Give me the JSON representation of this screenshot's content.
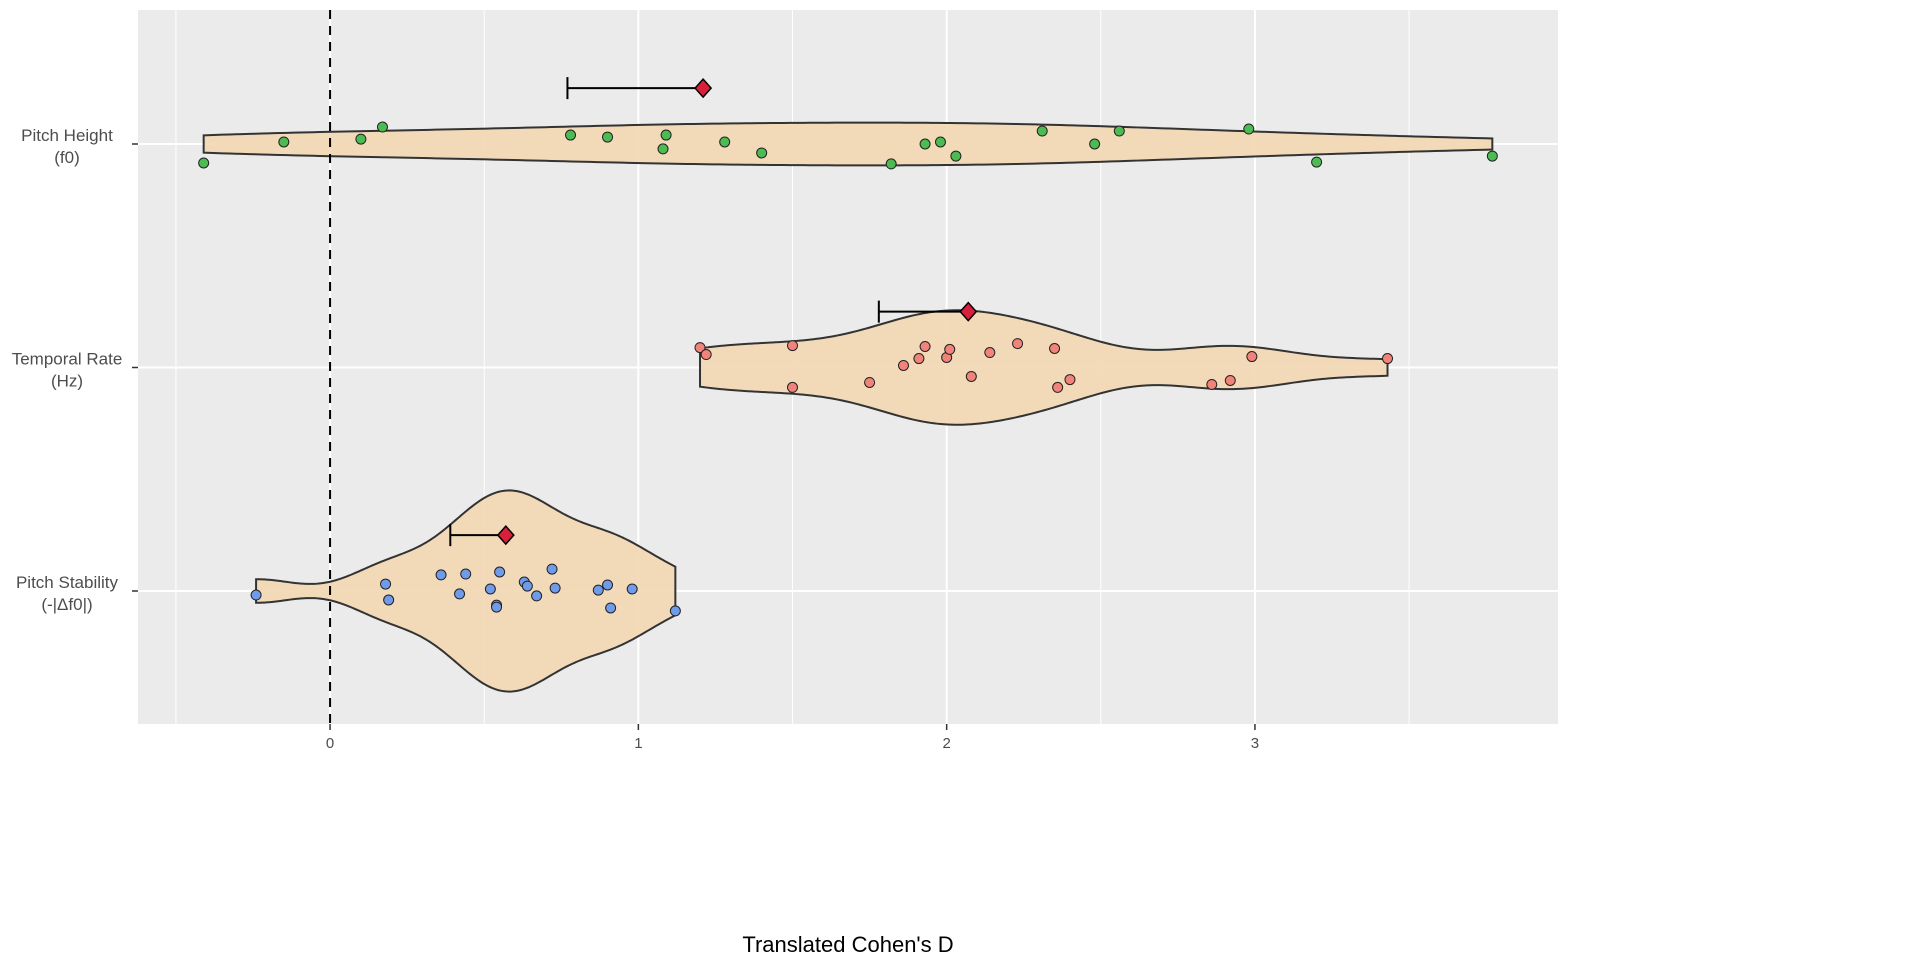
{
  "chart_data": {
    "type": "violin",
    "title": "",
    "xlabel": "Translated Cohen's D",
    "ylabel": "",
    "xlim": [
      -0.623,
      3.983
    ],
    "x_ticks": [
      0,
      1,
      2,
      3
    ],
    "x_tick_labels": [
      "0",
      "1",
      "2",
      "3"
    ],
    "reference_line": {
      "x": 0,
      "style": "dashed"
    },
    "grid": true,
    "legend": "none",
    "colors": {
      "panel": "#ebebeb",
      "violin_fill": "#f2d8b4",
      "violin_stroke": "#333333",
      "mean_marker": "#d7203c"
    },
    "categories": [
      {
        "label_line1": "Pitch Height",
        "label_line2": "(f0)",
        "position": 3,
        "point_color": "#4cbc52",
        "mean": 1.21,
        "ci_lower": 0.77,
        "points": [
          [
            -0.41,
            -0.085
          ],
          [
            -0.15,
            0.009
          ],
          [
            0.1,
            0.022
          ],
          [
            0.17,
            0.076
          ],
          [
            0.78,
            0.04
          ],
          [
            0.9,
            0.031
          ],
          [
            1.09,
            0.04
          ],
          [
            1.08,
            -0.022
          ],
          [
            1.28,
            0.009
          ],
          [
            1.4,
            -0.04
          ],
          [
            1.82,
            -0.089
          ],
          [
            1.93,
            0
          ],
          [
            1.98,
            0.009
          ],
          [
            2.03,
            -0.054
          ],
          [
            2.31,
            0.058
          ],
          [
            2.48,
            0
          ],
          [
            2.56,
            0.058
          ],
          [
            2.98,
            0.067
          ],
          [
            3.2,
            -0.081
          ],
          [
            3.77,
            -0.054
          ]
        ]
      },
      {
        "label_line1": "Temporal Rate",
        "label_line2": "(Hz)",
        "position": 2,
        "point_color": "#f2837b",
        "mean": 2.07,
        "ci_lower": 1.78,
        "points": [
          [
            1.2,
            0.089
          ],
          [
            1.22,
            0.058
          ],
          [
            1.5,
            0.098
          ],
          [
            1.5,
            -0.089
          ],
          [
            1.75,
            -0.067
          ],
          [
            1.86,
            0.009
          ],
          [
            1.91,
            0.04
          ],
          [
            1.93,
            0.094
          ],
          [
            2.0,
            0.045
          ],
          [
            2.01,
            0.081
          ],
          [
            2.08,
            -0.04
          ],
          [
            2.14,
            0.067
          ],
          [
            2.23,
            0.107
          ],
          [
            2.35,
            0.085
          ],
          [
            2.36,
            -0.089
          ],
          [
            2.4,
            -0.054
          ],
          [
            2.86,
            -0.076
          ],
          [
            2.92,
            -0.058
          ],
          [
            2.99,
            0.049
          ],
          [
            3.43,
            0.04
          ]
        ]
      },
      {
        "label_line1": "Pitch Stability",
        "label_line2": "(-|Δf0|)",
        "position": 1,
        "point_color": "#6f9be9",
        "mean": 0.57,
        "ci_lower": 0.39,
        "points": [
          [
            -0.24,
            -0.018
          ],
          [
            0.18,
            0.031
          ],
          [
            0.19,
            -0.04
          ],
          [
            0.36,
            0.072
          ],
          [
            0.42,
            -0.013
          ],
          [
            0.44,
            0.076
          ],
          [
            0.52,
            0.009
          ],
          [
            0.54,
            -0.063
          ],
          [
            0.54,
            -0.072
          ],
          [
            0.55,
            0.085
          ],
          [
            0.63,
            0.04
          ],
          [
            0.64,
            0.022
          ],
          [
            0.67,
            -0.022
          ],
          [
            0.72,
            0.098
          ],
          [
            0.73,
            0.013
          ],
          [
            0.87,
            0.004
          ],
          [
            0.9,
            0.027
          ],
          [
            0.91,
            -0.076
          ],
          [
            0.98,
            0.009
          ],
          [
            1.12,
            -0.089
          ]
        ]
      }
    ],
    "mean_offset": 0.25
  }
}
